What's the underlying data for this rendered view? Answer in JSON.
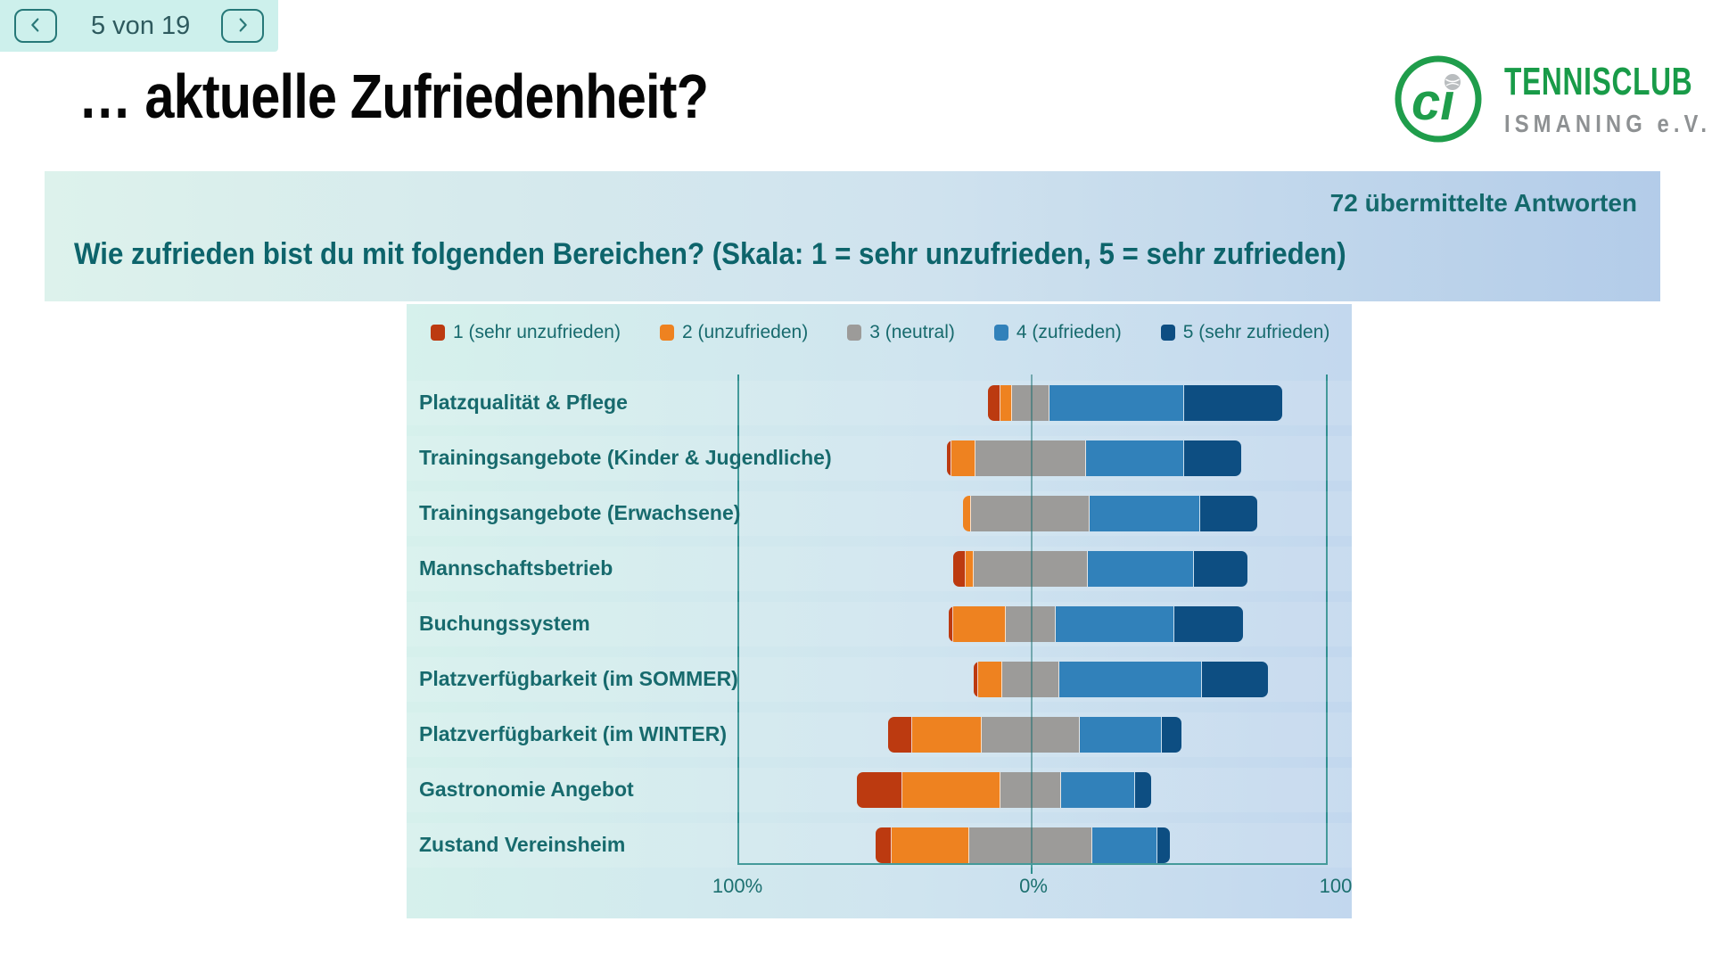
{
  "nav": {
    "page_indicator": "5 von 19"
  },
  "title": "… aktuelle Zufriedenheit?",
  "logo": {
    "monogram": "ci",
    "club_name": "TENNISCLUB",
    "club_subtitle": "ISMANING e.V.",
    "brand_green": "#189b48",
    "brand_gray": "#8e9193"
  },
  "banner": {
    "responses": "72 übermittelte Antworten",
    "question": "Wie zufrieden bist du mit folgenden Bereichen? (Skala: 1 = sehr unzufrieden, 5 = sehr zufrieden)"
  },
  "chart_data": {
    "type": "bar",
    "variant": "diverging-stacked-horizontal",
    "total_responses_label": "72 übermittelte Antworten",
    "scale_note": "Skala: 1 = sehr unzufrieden, 5 = sehr zufrieden",
    "neutral_centered_on_zero": true,
    "legend": [
      {
        "label": "1 (sehr unzufrieden)",
        "color": "#bc3a10"
      },
      {
        "label": "2 (unzufrieden)",
        "color": "#ee8220"
      },
      {
        "label": "3 (neutral)",
        "color": "#9c9b99"
      },
      {
        "label": "4 (zufrieden)",
        "color": "#3181ba"
      },
      {
        "label": "5 (sehr zufrieden)",
        "color": "#0d4e82"
      }
    ],
    "axis": {
      "left_label": "100%",
      "center_label": "0%",
      "right_label": "100",
      "xlim": [
        -100,
        100
      ],
      "unit": "percent of responses"
    },
    "rows": [
      {
        "label": "Platzqualität & Pflege",
        "values_pct": [
          4.2,
          4.2,
          12.5,
          45.8,
          33.3
        ]
      },
      {
        "label": "Trainingsangebote (Kinder & Jugendliche)",
        "values_pct": [
          1.4,
          8.3,
          37.5,
          33.3,
          19.4
        ]
      },
      {
        "label": "Trainingsangebote (Erwachsene)",
        "values_pct": [
          0,
          2.8,
          40.3,
          37.5,
          19.4
        ]
      },
      {
        "label": "Mannschaftsbetrieb",
        "values_pct": [
          4.2,
          2.8,
          38.9,
          36.1,
          18.1
        ]
      },
      {
        "label": "Buchungssystem",
        "values_pct": [
          1.4,
          18.1,
          16.7,
          40.3,
          23.6
        ]
      },
      {
        "label": "Platzverfügbarkeit (im SOMMER)",
        "values_pct": [
          1.4,
          8.3,
          19.4,
          48.6,
          22.2
        ]
      },
      {
        "label": "Platzverfügbarkeit (im WINTER)",
        "values_pct": [
          8.3,
          23.6,
          33.3,
          27.8,
          6.9
        ]
      },
      {
        "label": "Gastronomie Angebot",
        "values_pct": [
          15.3,
          33.3,
          20.8,
          25.0,
          5.6
        ]
      },
      {
        "label": "Zustand Vereinsheim",
        "values_pct": [
          5.6,
          26.4,
          41.7,
          22.2,
          4.2
        ]
      }
    ]
  }
}
